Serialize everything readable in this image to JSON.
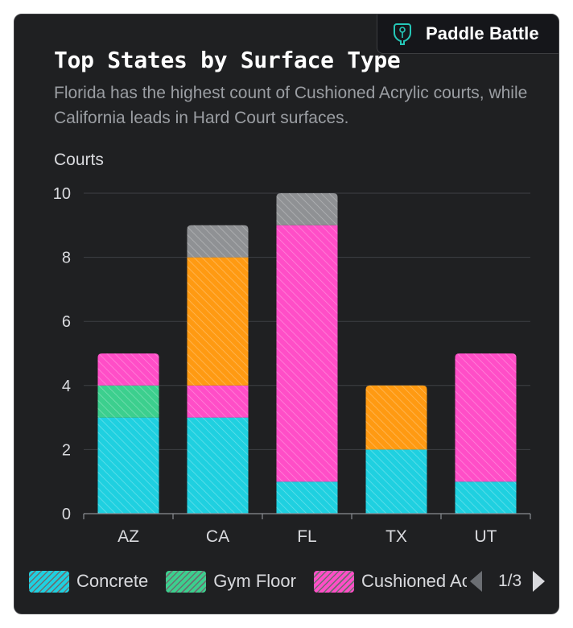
{
  "brand": {
    "name": "Paddle Battle",
    "logo_icon": "paddle-icon"
  },
  "title": "Top States by Surface Type",
  "subtitle": "Florida has the highest count of Cushioned Acrylic courts, while California leads in Hard Court surfaces.",
  "colors": {
    "background": "#1f2022",
    "Concrete": "#1fd0e0",
    "Gym Floor": "#3ccf8e",
    "Cushioned Acrylic": "#ff4ec7",
    "Hard Court": "#ff9a12",
    "Other": "#8f9194"
  },
  "legend": {
    "items": [
      "Concrete",
      "Gym Floor",
      "Cushioned Acrylic"
    ],
    "page": "1/3",
    "prev_icon": "triangle-left-icon",
    "next_icon": "triangle-right-icon"
  },
  "chart_data": {
    "type": "bar",
    "stacked": true,
    "categories": [
      "AZ",
      "CA",
      "FL",
      "TX",
      "UT"
    ],
    "ylabel": "Courts",
    "ylim": [
      0,
      10
    ],
    "yticks": [
      0,
      2,
      4,
      6,
      8,
      10
    ],
    "grid": true,
    "legend_position": "bottom",
    "series": [
      {
        "name": "Concrete",
        "values": [
          3,
          3,
          1,
          2,
          1
        ]
      },
      {
        "name": "Gym Floor",
        "values": [
          1,
          0,
          0,
          0,
          0
        ]
      },
      {
        "name": "Cushioned Acrylic",
        "values": [
          1,
          1,
          8,
          0,
          4
        ]
      },
      {
        "values": [
          0,
          4,
          0,
          2,
          0
        ]
      },
      {
        "values": [
          0,
          1,
          1,
          0,
          0
        ]
      }
    ]
  }
}
